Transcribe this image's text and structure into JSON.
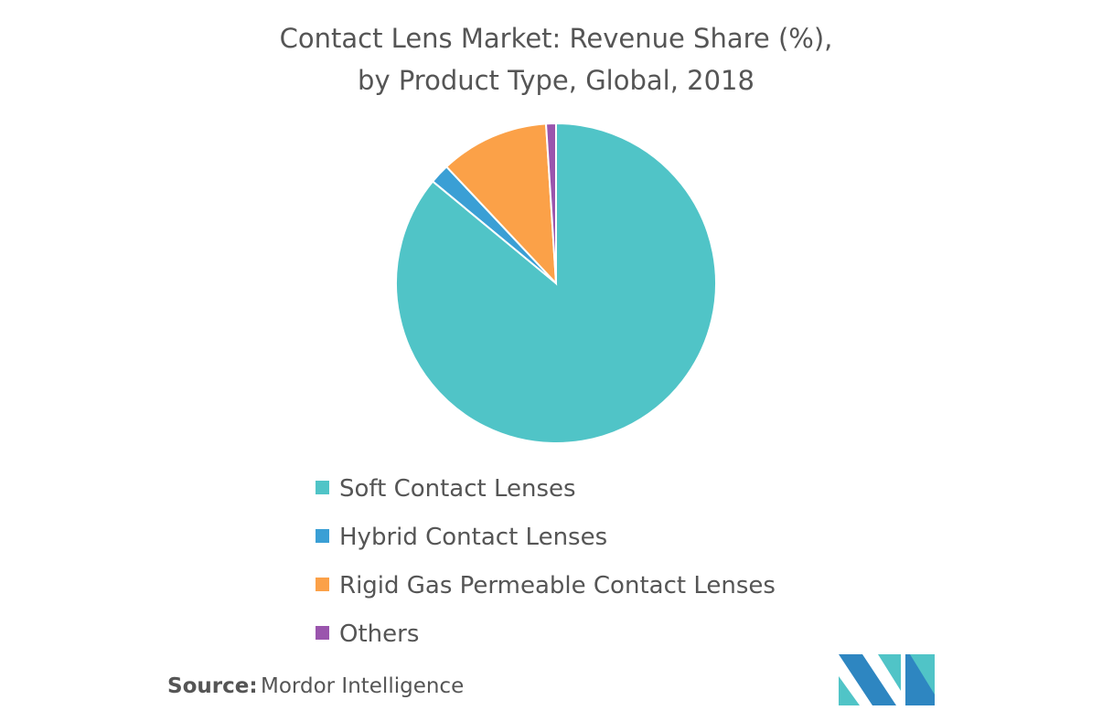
{
  "chart_data": {
    "type": "pie",
    "title": "Contact Lens Market: Revenue Share (%),",
    "subtitle": "by Product Type, Global, 2018",
    "categories": [
      "Soft Contact Lenses",
      "Hybrid Contact Lenses",
      "Rigid Gas Permeable Contact Lenses",
      "Others"
    ],
    "values": [
      86,
      2,
      11,
      1
    ],
    "colors": [
      "#50c4c7",
      "#3a9fd5",
      "#fba148",
      "#9a55ad"
    ]
  },
  "source_label": "Source:",
  "source": "Mordor Intelligence"
}
